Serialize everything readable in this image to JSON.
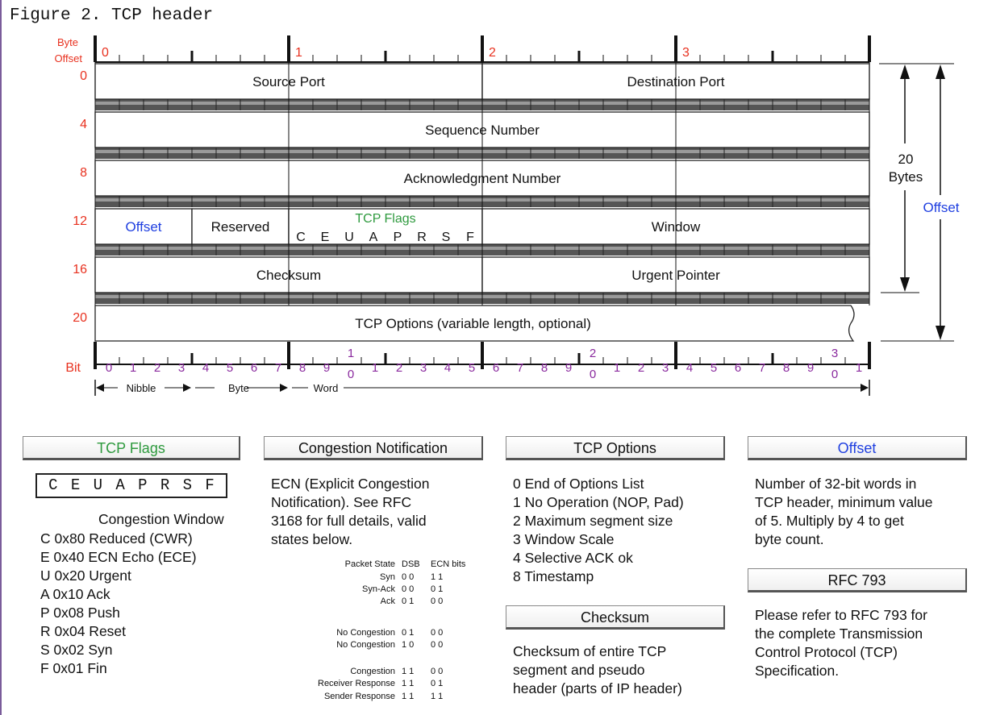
{
  "caption": "Figure 2. TCP header",
  "diagram": {
    "byte_offset_label": [
      "Byte",
      "Offset"
    ],
    "byte_markers": [
      "0",
      "1",
      "2",
      "3"
    ],
    "row_offsets": [
      "0",
      "4",
      "8",
      "12",
      "16",
      "20"
    ],
    "fields": {
      "source_port": "Source Port",
      "destination_port": "Destination Port",
      "sequence_number": "Sequence Number",
      "acknowledgment_number": "Acknowledgment Number",
      "offset": "Offset",
      "reserved": "Reserved",
      "tcp_flags_title": "TCP Flags",
      "tcp_flags_letters": [
        "C",
        "E",
        "U",
        "A",
        "P",
        "R",
        "S",
        "F"
      ],
      "window": "Window",
      "checksum": "Checksum",
      "urgent_pointer": "Urgent Pointer",
      "tcp_options": "TCP Options (variable length, optional)"
    },
    "right_dim": {
      "size": "20",
      "unit": "Bytes",
      "offset": "Offset"
    },
    "bit_label": "Bit",
    "bit_numbers": [
      "0",
      "1",
      "2",
      "3",
      "4",
      "5",
      "6",
      "7",
      "8",
      "9",
      "1|0",
      "1",
      "2",
      "3",
      "4",
      "5",
      "6",
      "7",
      "8",
      "9",
      "2|0",
      "1",
      "2",
      "3",
      "4",
      "5",
      "6",
      "7",
      "8",
      "9",
      "3|0",
      "1"
    ],
    "scale": {
      "nibble": "Nibble",
      "byte": "Byte",
      "word": "Word"
    },
    "colors": {
      "offset_red": "#e8311f",
      "blue": "#1f3fe0",
      "green": "#2e9a3e",
      "purple": "#8a2a9e"
    }
  },
  "legend": {
    "tcp_flags": {
      "header": "TCP Flags",
      "box_letters": [
        "C",
        "E",
        "U",
        "A",
        "P",
        "R",
        "S",
        "F"
      ],
      "subtitle": "Congestion Window",
      "items": [
        "C  0x80 Reduced (CWR)",
        "E  0x40 ECN Echo (ECE)",
        "U  0x20 Urgent",
        "A  0x10 Ack",
        "P  0x08 Push",
        "R  0x04 Reset",
        "S  0x02 Syn",
        "F  0x01 Fin"
      ]
    },
    "congestion": {
      "header": "Congestion Notification",
      "text": [
        "ECN (Explicit Congestion",
        "Notification).  See RFC",
        "3168 for full details, valid",
        "states below."
      ],
      "table_headers": [
        "Packet State",
        "DSB",
        "ECN bits"
      ],
      "rows": [
        {
          "state": "Syn",
          "dsb": "0 0",
          "ecn": "1 1"
        },
        {
          "state": "Syn-Ack",
          "dsb": "0 0",
          "ecn": "0 1"
        },
        {
          "state": "Ack",
          "dsb": "0 1",
          "ecn": "0 0"
        },
        {
          "state": "No Congestion",
          "dsb": "0 1",
          "ecn": "0 0"
        },
        {
          "state": "No Congestion",
          "dsb": "1 0",
          "ecn": "0 0"
        },
        {
          "state": "Congestion",
          "dsb": "1 1",
          "ecn": "0 0"
        },
        {
          "state": "Receiver Response",
          "dsb": "1 1",
          "ecn": "0 1"
        },
        {
          "state": "Sender Response",
          "dsb": "1 1",
          "ecn": "1 1"
        }
      ]
    },
    "tcp_options": {
      "header": "TCP Options",
      "items": [
        "0 End of Options List",
        "1 No Operation (NOP, Pad)",
        "2 Maximum segment size",
        "3 Window Scale",
        "4 Selective ACK ok",
        "8 Timestamp"
      ]
    },
    "checksum": {
      "header": "Checksum",
      "text": [
        "Checksum of entire TCP",
        "segment and pseudo",
        "header (parts of IP header)"
      ]
    },
    "offset": {
      "header": "Offset",
      "text": [
        "Number of 32-bit words in",
        "TCP header, minimum value",
        "of 5.  Multiply by 4 to get",
        "byte count."
      ]
    },
    "rfc": {
      "header": "RFC 793",
      "text": [
        "Please refer to RFC 793 for",
        "the complete Transmission",
        "Control Protocol (TCP)",
        "Specification."
      ]
    }
  }
}
